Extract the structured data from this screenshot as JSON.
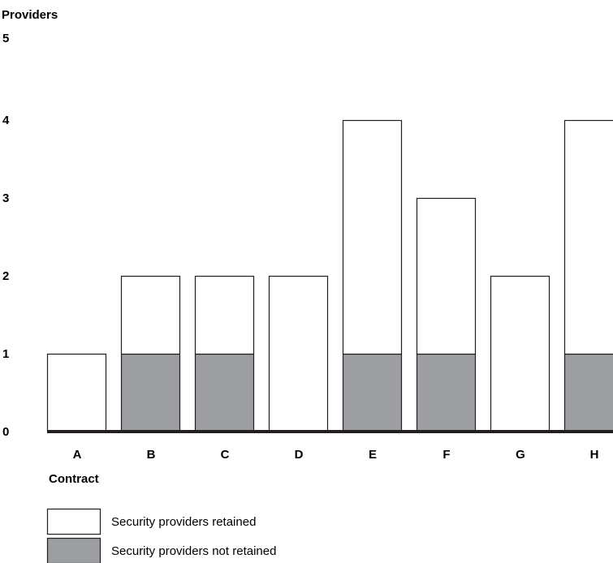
{
  "chart_data": {
    "type": "bar",
    "stacked": true,
    "title": "",
    "xlabel": "Contract",
    "ylabel": "Providers",
    "ylim": [
      0,
      5
    ],
    "yticks": [
      0,
      1,
      2,
      3,
      4,
      5
    ],
    "categories": [
      "A",
      "B",
      "C",
      "D",
      "E",
      "F",
      "G",
      "H"
    ],
    "series": [
      {
        "name": "Security providers not retained",
        "color": "#9d9ea2",
        "values": [
          0,
          1,
          1,
          0,
          1,
          1,
          0,
          1
        ]
      },
      {
        "name": "Security providers retained",
        "color": "#ffffff",
        "values": [
          1,
          1,
          1,
          2,
          3,
          2,
          2,
          3
        ]
      }
    ],
    "legend_position": "bottom-left",
    "grid": false
  }
}
